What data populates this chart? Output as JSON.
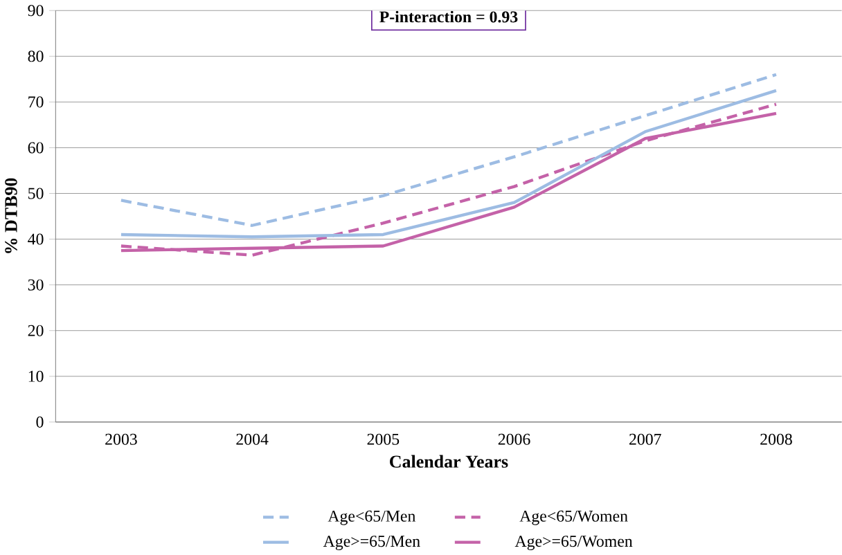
{
  "chart_data": {
    "type": "line",
    "xlabel": "Calendar Years",
    "ylabel": "% DTB90",
    "annotations": [
      "P-interaction = 0.93"
    ],
    "categories": [
      "2003",
      "2004",
      "2005",
      "2006",
      "2007",
      "2008"
    ],
    "series": [
      {
        "name": "Age<65/Men",
        "color": "#9dbce3",
        "line_style": "dashed",
        "values": [
          48.5,
          43,
          49.5,
          58,
          67,
          76
        ]
      },
      {
        "name": "Age<65/Women",
        "color": "#c462a8",
        "line_style": "dashed",
        "values": [
          38.5,
          36.5,
          43.5,
          51.5,
          61.5,
          69.5
        ]
      },
      {
        "name": "Age>=65/Men",
        "color": "#9dbce3",
        "line_style": "solid",
        "values": [
          41,
          40.5,
          41,
          48,
          63.5,
          72.5
        ]
      },
      {
        "name": "Age>=65/Women",
        "color": "#c462a8",
        "line_style": "solid",
        "values": [
          37.5,
          38,
          38.5,
          47,
          62,
          67.5
        ]
      }
    ],
    "ylim": [
      0,
      90
    ],
    "yticks": [
      0,
      10,
      20,
      30,
      40,
      50,
      60,
      70,
      80,
      90
    ],
    "grid": "y",
    "legend": "bottom"
  }
}
